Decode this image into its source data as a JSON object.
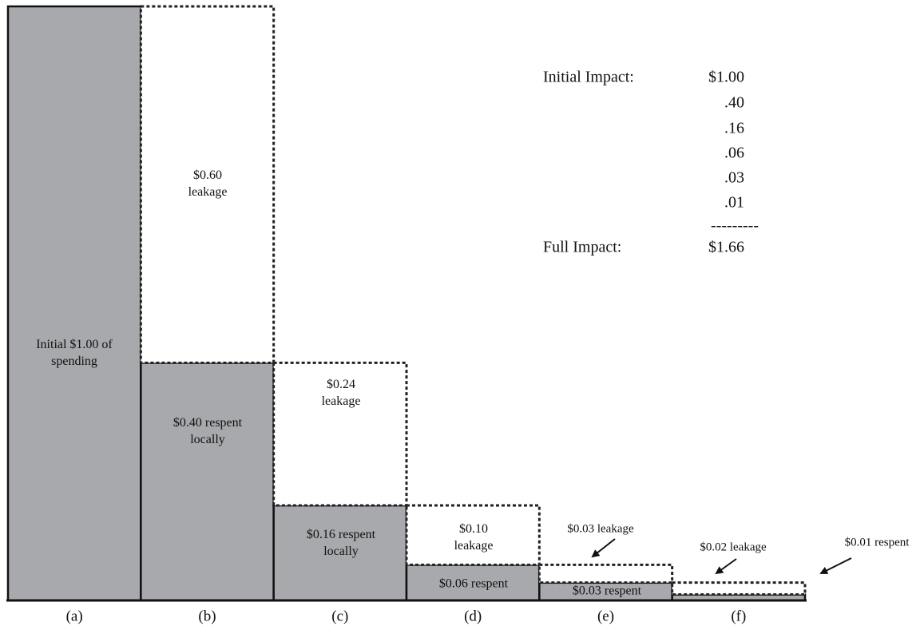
{
  "chart_data": {
    "type": "bar",
    "stacked": true,
    "categories": [
      "(a)",
      "(b)",
      "(c)",
      "(d)",
      "(e)",
      "(f)"
    ],
    "series": [
      {
        "color": "#a7a9ac",
        "values": [
          1.0,
          0.4,
          0.16,
          0.06,
          0.03,
          0.01
        ],
        "value_labels": [
          "Initial $1.00 of spending",
          "$0.40 respent locally",
          "$0.16 respent locally",
          "$0.06 respent",
          "$0.03 respent",
          "$0.01 respent"
        ]
      },
      {
        "color": "#ffffff",
        "values": [
          null,
          0.6,
          0.24,
          0.1,
          0.03,
          0.02
        ],
        "value_labels": [
          null,
          "$0.60 leakage",
          "$0.24 leakage",
          "$0.10 leakage",
          "$0.03 leakage",
          "$0.02 leakage"
        ]
      }
    ]
  },
  "summary": {
    "rows": [
      {
        "label": "Initial Impact:",
        "value": "$1.00"
      },
      {
        "value": ".40"
      },
      {
        "value": ".16"
      },
      {
        "value": ".06"
      },
      {
        "value": ".03"
      },
      {
        "value": ".01"
      },
      {
        "value": "---------"
      },
      {
        "label": "Full Impact:",
        "value": "$1.66"
      }
    ]
  }
}
